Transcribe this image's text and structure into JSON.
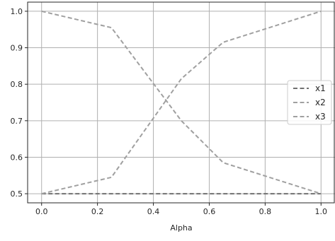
{
  "chart_data": {
    "type": "line",
    "title": "",
    "xlabel": "Alpha",
    "ylabel": "",
    "xlim": [
      -0.05,
      1.05
    ],
    "ylim": [
      0.475,
      1.025
    ],
    "xticks": [
      0.0,
      0.2,
      0.4,
      0.6,
      0.8,
      1.0
    ],
    "xtick_labels": [
      "0.0",
      "0.2",
      "0.4",
      "0.6",
      "0.8",
      "1.0"
    ],
    "yticks": [
      0.5,
      0.6,
      0.7,
      0.8,
      0.9,
      1.0
    ],
    "ytick_labels": [
      "0.5",
      "0.6",
      "0.7",
      "0.8",
      "0.9",
      "1.0"
    ],
    "grid": true,
    "legend_position": "center-right",
    "series": [
      {
        "name": "x1",
        "color": "#707070",
        "linestyle": "dashed",
        "x": [
          0.0,
          0.25,
          0.5,
          0.65,
          1.0
        ],
        "y": [
          0.5,
          0.5,
          0.5,
          0.5,
          0.5
        ]
      },
      {
        "name": "x2",
        "color": "#a0a0a0",
        "linestyle": "dashed",
        "x": [
          0.0,
          0.25,
          0.5,
          0.65,
          1.0
        ],
        "y": [
          1.0,
          0.955,
          0.7,
          0.585,
          0.5
        ]
      },
      {
        "name": "x3",
        "color": "#a0a0a0",
        "linestyle": "dashed",
        "x": [
          0.0,
          0.25,
          0.5,
          0.65,
          1.0
        ],
        "y": [
          0.5,
          0.545,
          0.815,
          0.915,
          1.0
        ]
      }
    ]
  }
}
